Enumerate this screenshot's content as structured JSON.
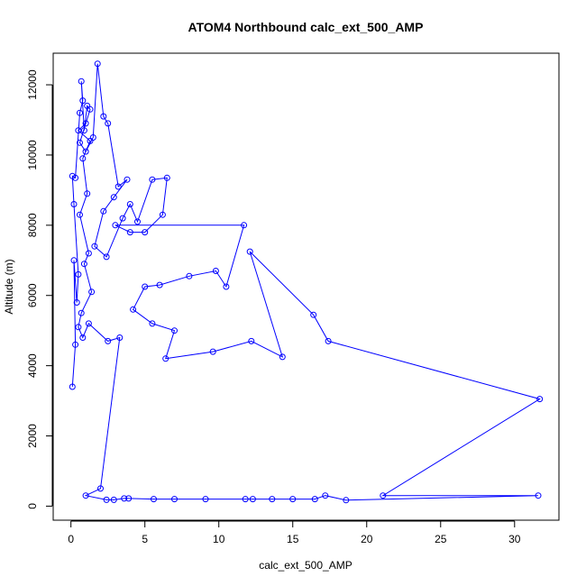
{
  "chart_data": {
    "type": "scatter",
    "title": "ATOM4 Northbound calc_ext_500_AMP",
    "xlabel": "calc_ext_500_AMP",
    "ylabel": "Altitude (m)",
    "xlim": [
      -1.2,
      33.0
    ],
    "ylim": [
      -400,
      12900
    ],
    "x_ticks": [
      0,
      5,
      10,
      15,
      20,
      25,
      30
    ],
    "y_ticks": [
      0,
      2000,
      4000,
      6000,
      8000,
      10000,
      12000
    ],
    "grid": false,
    "color": "#0000ff",
    "series": [
      {
        "points": [
          [
            0.1,
            3400
          ],
          [
            0.3,
            4600
          ],
          [
            0.2,
            7000
          ],
          [
            0.4,
            5800
          ],
          [
            0.5,
            6600
          ],
          [
            0.2,
            8600
          ],
          [
            0.1,
            9400
          ],
          [
            0.3,
            9350
          ],
          [
            0.6,
            11200
          ],
          [
            0.8,
            11550
          ],
          [
            0.7,
            12100
          ],
          [
            0.9,
            10700
          ],
          [
            1.1,
            11400
          ],
          [
            1.3,
            11300
          ],
          [
            0.6,
            10350
          ],
          [
            1.0,
            10100
          ],
          [
            1.5,
            10500
          ],
          [
            1.8,
            12600
          ],
          [
            2.2,
            11100
          ],
          [
            2.5,
            10900
          ],
          [
            3.2,
            9100
          ],
          [
            3.8,
            9300
          ],
          [
            2.9,
            8800
          ],
          [
            2.2,
            8400
          ],
          [
            1.6,
            7400
          ],
          [
            2.4,
            7100
          ],
          [
            3.5,
            8200
          ],
          [
            4.0,
            8600
          ],
          [
            4.5,
            8100
          ],
          [
            5.5,
            9300
          ],
          [
            6.5,
            9350
          ],
          [
            6.2,
            8300
          ],
          [
            5.0,
            7800
          ],
          [
            4.0,
            7800
          ],
          [
            3.0,
            8000
          ],
          [
            11.7,
            8000
          ],
          [
            10.5,
            6250
          ],
          [
            9.8,
            6700
          ],
          [
            8.0,
            6550
          ],
          [
            6.0,
            6300
          ],
          [
            5.0,
            6250
          ],
          [
            4.2,
            5600
          ],
          [
            5.5,
            5200
          ],
          [
            7.0,
            5000
          ],
          [
            6.4,
            4200
          ],
          [
            9.6,
            4400
          ],
          [
            12.2,
            4700
          ],
          [
            14.3,
            4250
          ],
          [
            12.1,
            7250
          ],
          [
            16.4,
            5450
          ],
          [
            17.4,
            4700
          ],
          [
            31.7,
            3050
          ],
          [
            21.1,
            300
          ],
          [
            31.6,
            300
          ],
          [
            18.6,
            170
          ],
          [
            17.2,
            300
          ],
          [
            16.5,
            200
          ],
          [
            15.0,
            200
          ],
          [
            13.6,
            200
          ],
          [
            12.3,
            200
          ],
          [
            11.8,
            200
          ],
          [
            9.1,
            200
          ],
          [
            7.0,
            200
          ],
          [
            5.6,
            200
          ],
          [
            3.9,
            220
          ],
          [
            3.6,
            220
          ],
          [
            2.9,
            180
          ],
          [
            2.4,
            180
          ],
          [
            1.0,
            300
          ],
          [
            2.0,
            500
          ],
          [
            3.3,
            4800
          ],
          [
            2.5,
            4700
          ],
          [
            1.2,
            5200
          ],
          [
            0.8,
            4800
          ],
          [
            0.5,
            5100
          ],
          [
            0.7,
            5500
          ],
          [
            1.4,
            6100
          ],
          [
            0.9,
            6900
          ],
          [
            1.2,
            7200
          ],
          [
            0.6,
            8300
          ],
          [
            1.1,
            8900
          ],
          [
            0.8,
            9900
          ],
          [
            1.3,
            10400
          ],
          [
            0.5,
            10700
          ],
          [
            1.0,
            10900
          ]
        ]
      }
    ]
  }
}
